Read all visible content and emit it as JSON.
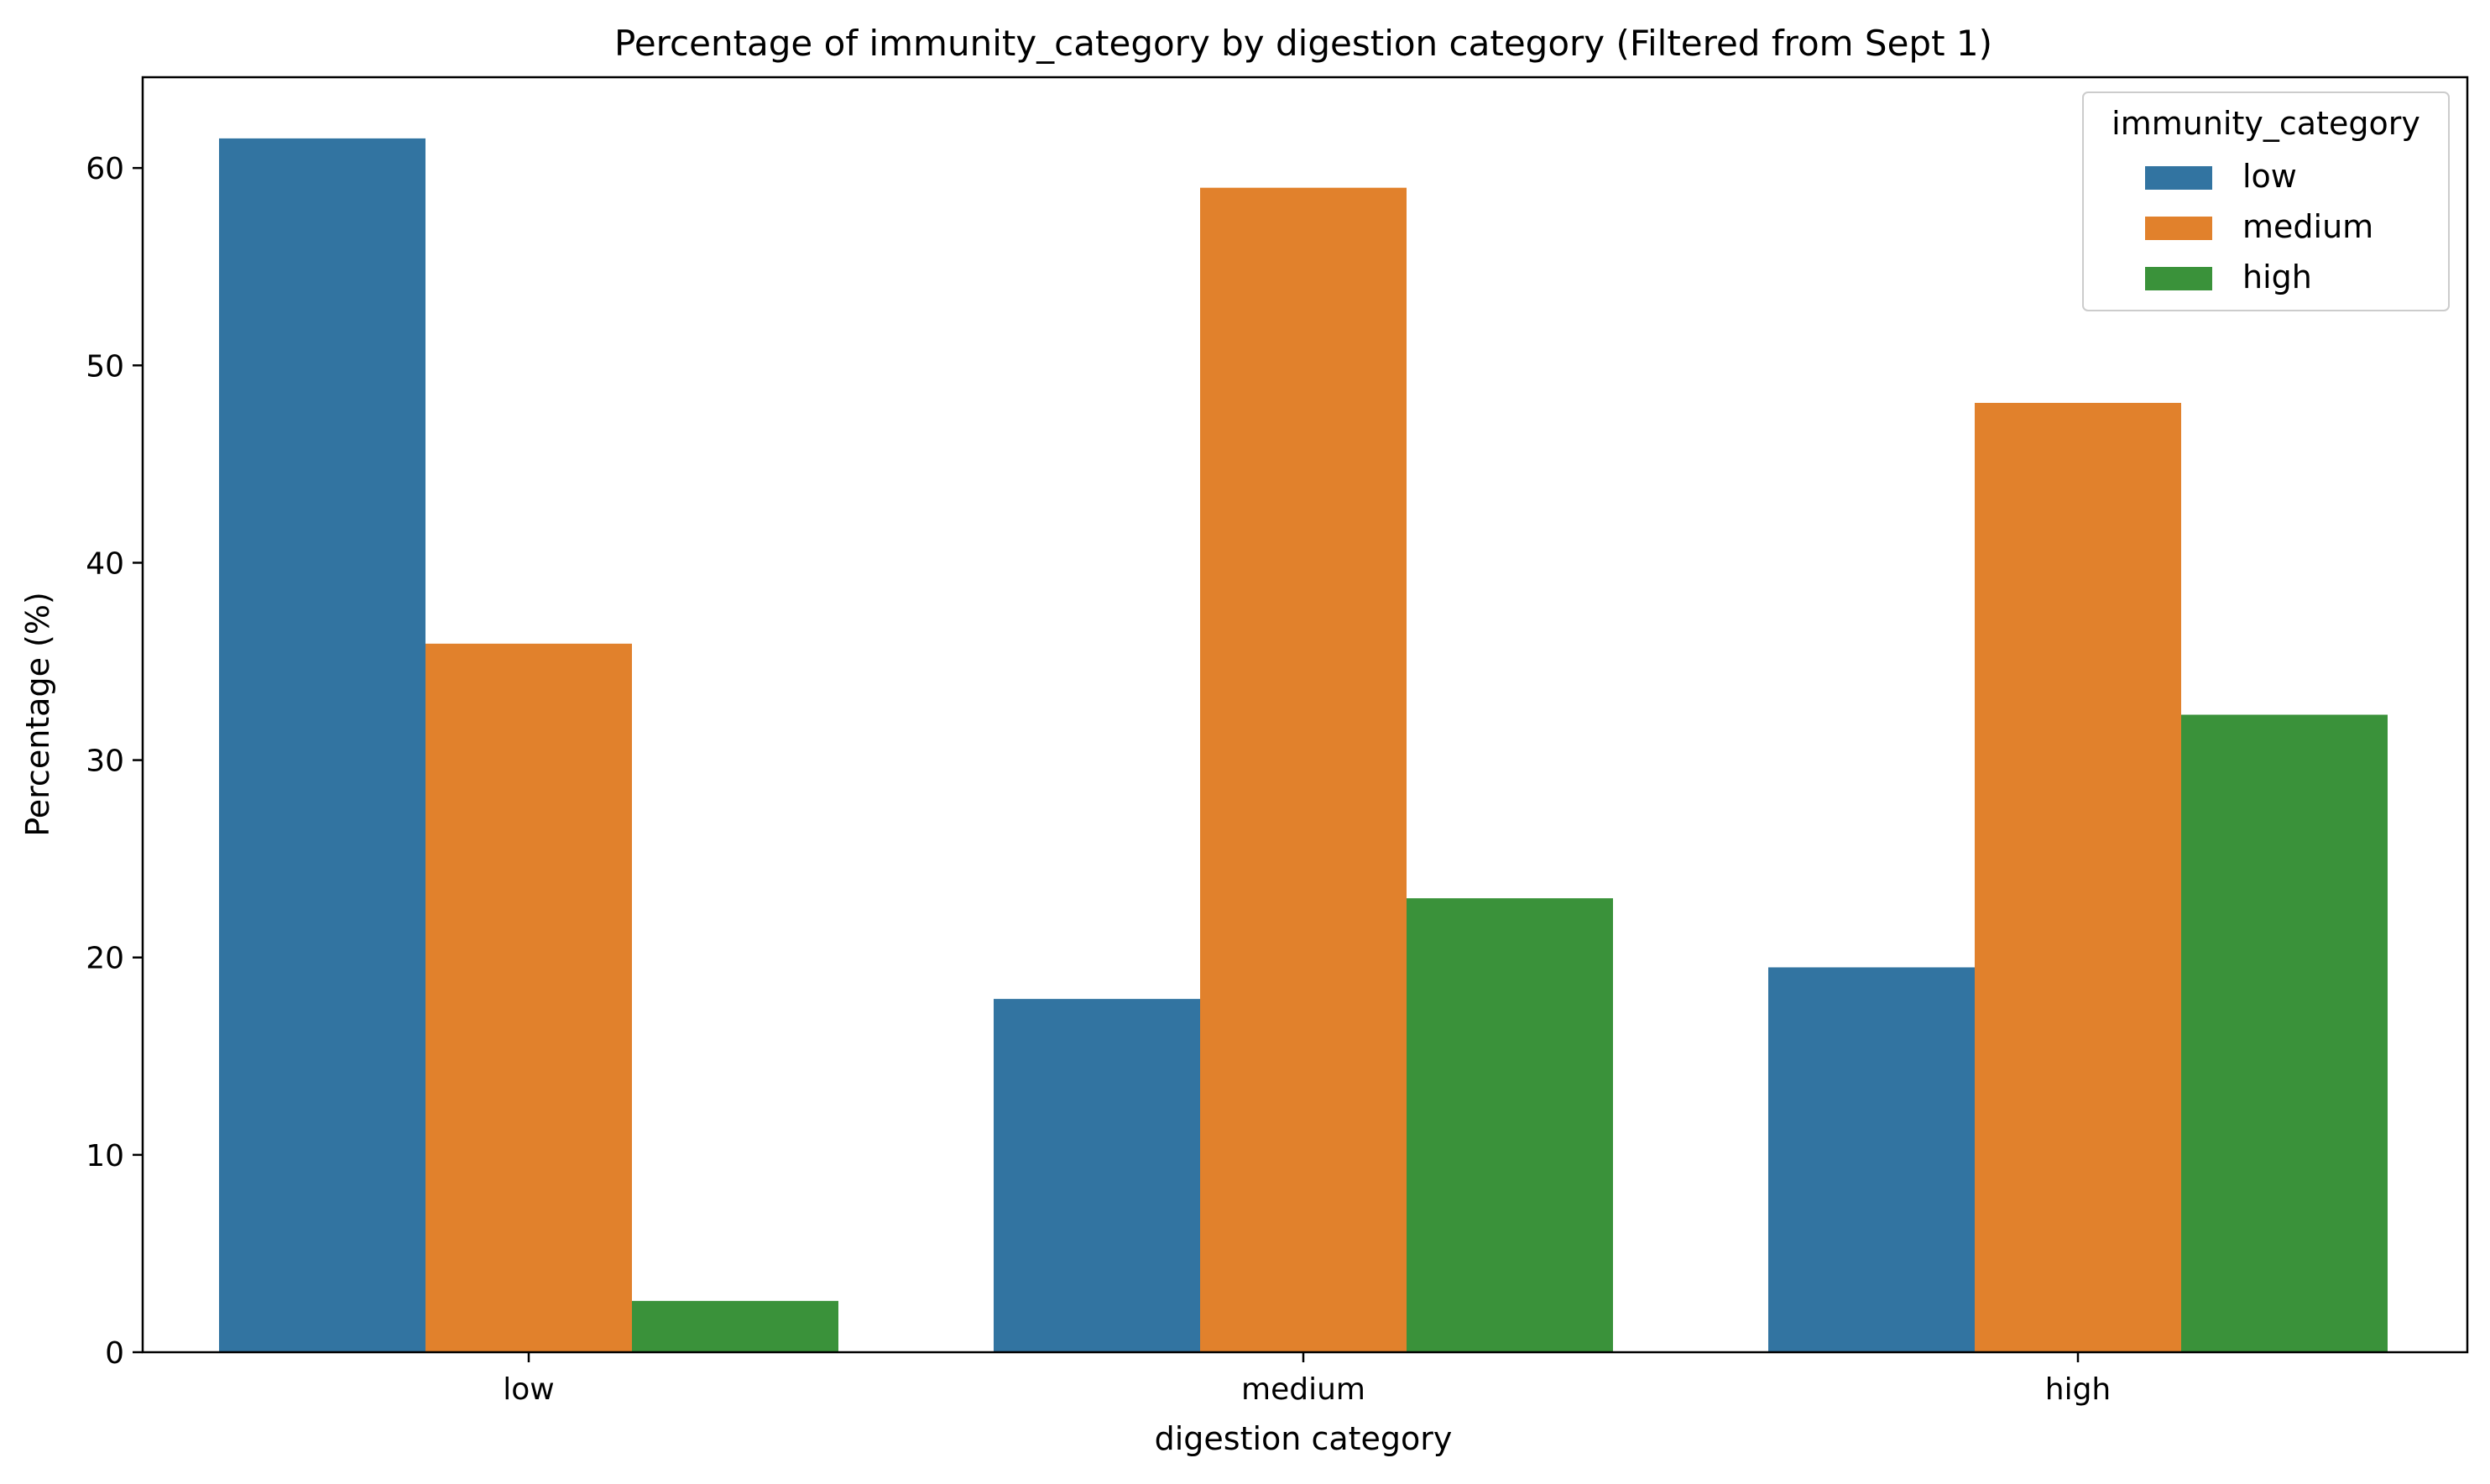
{
  "chart_data": {
    "type": "bar",
    "title": "Percentage of immunity_category by digestion category (Filtered from Sept 1)",
    "xlabel": "digestion category",
    "ylabel": "Percentage (%)",
    "categories": [
      "low",
      "medium",
      "high"
    ],
    "series": [
      {
        "name": "low",
        "color": "#3274a1",
        "values": [
          61.5,
          17.9,
          19.5
        ]
      },
      {
        "name": "medium",
        "color": "#e1812c",
        "values": [
          35.9,
          59.0,
          48.1
        ]
      },
      {
        "name": "high",
        "color": "#3a923a",
        "values": [
          2.6,
          23.0,
          32.3
        ]
      }
    ],
    "ylim": [
      0,
      64.6
    ],
    "yticks": [
      0,
      10,
      20,
      30,
      40,
      50,
      60
    ],
    "legend": {
      "title": "immunity_category",
      "position": "top-right"
    },
    "grid": false
  }
}
